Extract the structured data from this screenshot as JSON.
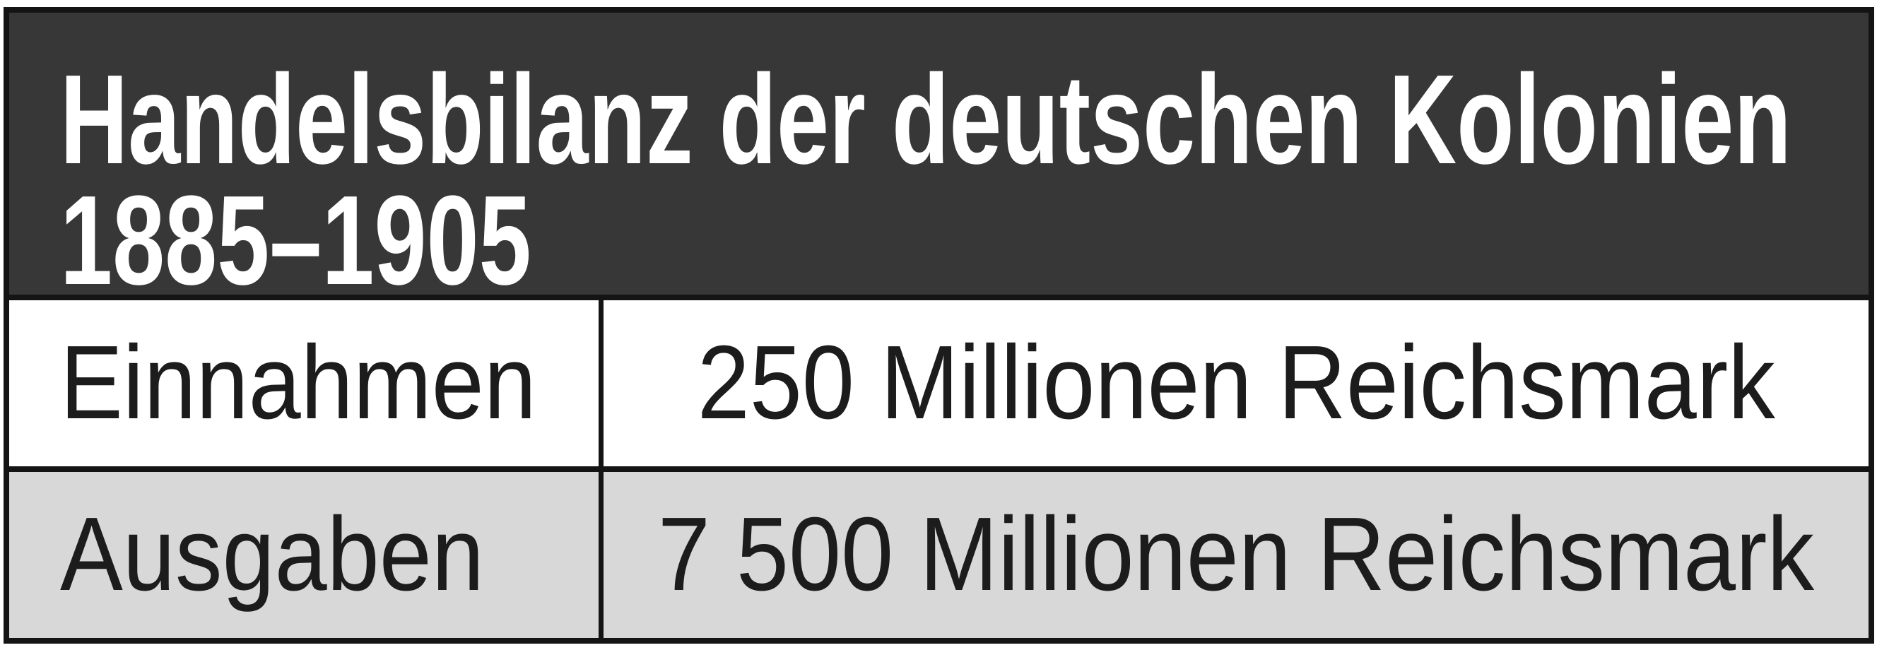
{
  "table": {
    "title": {
      "full": "Handelsbilanz der deutschen Kolonien 1885–1905",
      "line1": "Handelsbilanz der deutschen Kolonien",
      "line2": "1885–1905"
    },
    "rows": [
      {
        "label": "Einnahmen",
        "value": "250 Millionen Reichsmark"
      },
      {
        "label": "Ausgaben",
        "value": "7 500 Millionen Reichsmark"
      }
    ],
    "colors": {
      "title_bg": "#373737",
      "title_text": "#ffffff",
      "row_white_bg": "#ffffff",
      "row_gray_bg": "#d8d8d8",
      "rule": "#141414",
      "body_text": "#1c1c1c"
    }
  },
  "chart_data": {
    "type": "table",
    "title": "Handelsbilanz der deutschen Kolonien 1885–1905",
    "categories": [
      "Einnahmen",
      "Ausgaben"
    ],
    "values": [
      250,
      7500
    ],
    "unit": "Millionen Reichsmark",
    "notes": "Two-column statistics table; title band dark gray, Einnahmen row white, Ausgaben row light gray"
  }
}
